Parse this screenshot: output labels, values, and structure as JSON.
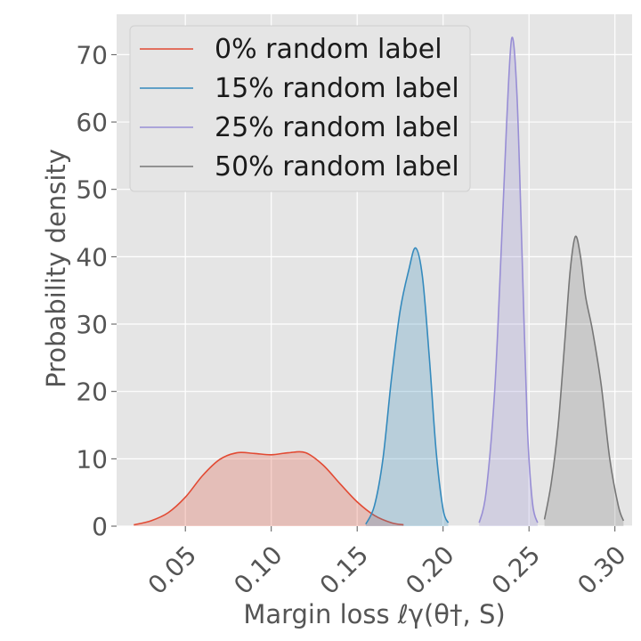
{
  "chart_data": {
    "type": "area",
    "xlabel": "Margin loss ℓγ(θ†, S)",
    "ylabel": "Probability density",
    "xlim": [
      0.01,
      0.31
    ],
    "ylim": [
      0,
      76
    ],
    "x_ticks": [
      "0.05",
      "0.10",
      "0.15",
      "0.20",
      "0.25",
      "0.30"
    ],
    "x_tick_values": [
      0.05,
      0.1,
      0.15,
      0.2,
      0.25,
      0.3
    ],
    "y_ticks": [
      "0",
      "10",
      "20",
      "30",
      "40",
      "50",
      "60",
      "70"
    ],
    "y_tick_values": [
      0,
      10,
      20,
      30,
      40,
      50,
      60,
      70
    ],
    "grid": true,
    "legend_position": "top-left",
    "background_color": "#e5e5e5",
    "series": [
      {
        "name": "0% random label",
        "color": "#e24a33",
        "x": [
          0.02,
          0.03,
          0.04,
          0.05,
          0.06,
          0.07,
          0.08,
          0.09,
          0.1,
          0.11,
          0.12,
          0.13,
          0.14,
          0.15,
          0.16,
          0.17,
          0.177
        ],
        "y": [
          0.2,
          0.8,
          2.0,
          4.3,
          7.5,
          9.9,
          10.9,
          10.8,
          10.6,
          10.9,
          10.9,
          9.1,
          6.3,
          3.6,
          1.6,
          0.5,
          0.2
        ]
      },
      {
        "name": "15% random label",
        "color": "#348abd",
        "x": [
          0.155,
          0.16,
          0.165,
          0.17,
          0.175,
          0.18,
          0.184,
          0.188,
          0.192,
          0.196,
          0.2,
          0.203
        ],
        "y": [
          0.3,
          3.0,
          10.0,
          22.0,
          32.0,
          38.0,
          41.3,
          37.0,
          25.0,
          11.0,
          2.5,
          0.5
        ]
      },
      {
        "name": "25% random label",
        "color": "#988ed5",
        "x": [
          0.221,
          0.225,
          0.23,
          0.234,
          0.237,
          0.24,
          0.243,
          0.246,
          0.249,
          0.252,
          0.255
        ],
        "y": [
          0.5,
          5.0,
          20.0,
          42.0,
          60.0,
          72.5,
          64.0,
          40.0,
          15.0,
          3.5,
          0.5
        ]
      },
      {
        "name": "50% random label",
        "color": "#777777",
        "x": [
          0.259,
          0.263,
          0.267,
          0.271,
          0.274,
          0.277,
          0.28,
          0.283,
          0.287,
          0.292,
          0.297,
          0.302,
          0.305
        ],
        "y": [
          1.0,
          6.5,
          15.0,
          28.0,
          38.0,
          43.0,
          40.0,
          34.0,
          29.0,
          21.0,
          10.0,
          3.0,
          0.8
        ]
      }
    ]
  }
}
